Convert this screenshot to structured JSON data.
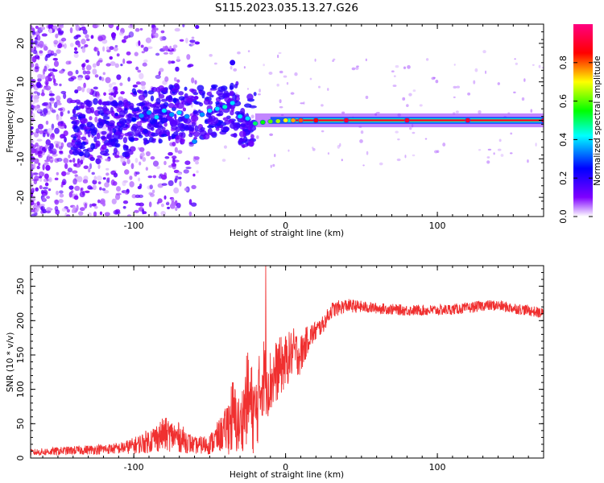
{
  "title": "S115.2023.035.13.27.G26",
  "chart_data": [
    {
      "type": "heatmap",
      "xlabel": "Height of straight line (km)",
      "ylabel": "Frequency (Hz)",
      "xlim": [
        -168,
        170
      ],
      "ylim": [
        -25,
        25
      ],
      "x_ticks": [
        -100,
        0,
        100
      ],
      "x_tick_labels": [
        "-100",
        "0",
        "100"
      ],
      "y_ticks": [
        -20,
        -10,
        0,
        10,
        20
      ],
      "y_tick_labels": [
        "-20",
        "-10",
        "0",
        "10",
        "20"
      ],
      "grid": false,
      "colorbar": {
        "label": "Normalized spectral amplitude",
        "range": [
          0,
          1
        ],
        "ticks": [
          0,
          0.2,
          0.4,
          0.6,
          0.8
        ],
        "tick_labels": [
          "0.0",
          "0.2",
          "0.4",
          "0.6",
          "0.8"
        ],
        "colormap": "rainbow",
        "colors": [
          "#ffffff",
          "#7f00ff",
          "#0000ff",
          "#00ffff",
          "#00ff00",
          "#ffff00",
          "#ff0000",
          "#ff0080"
        ]
      },
      "ridge": [
        {
          "x": -100,
          "y": 0.2,
          "v": 0.25
        },
        {
          "x": -95,
          "y": 1.2,
          "v": 0.35
        },
        {
          "x": -90,
          "y": 2.0,
          "v": 0.35
        },
        {
          "x": -85,
          "y": 0.8,
          "v": 0.4
        },
        {
          "x": -80,
          "y": 2.5,
          "v": 0.4
        },
        {
          "x": -75,
          "y": 1.5,
          "v": 0.35
        },
        {
          "x": -70,
          "y": 2.0,
          "v": 0.4
        },
        {
          "x": -65,
          "y": 1.0,
          "v": 0.35
        },
        {
          "x": -60,
          "y": -5.5,
          "v": 0.35
        },
        {
          "x": -55,
          "y": 1.5,
          "v": 0.35
        },
        {
          "x": -50,
          "y": 2.5,
          "v": 0.4
        },
        {
          "x": -45,
          "y": 3.0,
          "v": 0.4
        },
        {
          "x": -40,
          "y": 3.5,
          "v": 0.45
        },
        {
          "x": -35,
          "y": 4.5,
          "v": 0.4
        },
        {
          "x": -30,
          "y": 1.0,
          "v": 0.4
        },
        {
          "x": -25,
          "y": 0.5,
          "v": 0.4
        },
        {
          "x": -20,
          "y": -0.8,
          "v": 0.5
        },
        {
          "x": -15,
          "y": -0.5,
          "v": 0.55
        },
        {
          "x": -10,
          "y": -0.3,
          "v": 0.6
        },
        {
          "x": -5,
          "y": -0.2,
          "v": 0.65
        },
        {
          "x": 0,
          "y": 0.0,
          "v": 0.7
        },
        {
          "x": 5,
          "y": 0.0,
          "v": 0.75
        },
        {
          "x": 10,
          "y": 0.0,
          "v": 0.8
        },
        {
          "x": 20,
          "y": 0.0,
          "v": 0.85
        },
        {
          "x": 40,
          "y": 0.0,
          "v": 0.9
        },
        {
          "x": 80,
          "y": 0.0,
          "v": 0.9
        },
        {
          "x": 120,
          "y": 0.0,
          "v": 0.9
        },
        {
          "x": 170,
          "y": 0.0,
          "v": 0.9
        }
      ]
    },
    {
      "type": "line",
      "xlabel": "Height of straight line (km)",
      "ylabel": "SNR (10 * v/v)",
      "xlim": [
        -168,
        170
      ],
      "ylim": [
        0,
        280
      ],
      "x_ticks": [
        -100,
        0,
        100
      ],
      "x_tick_labels": [
        "-100",
        "0",
        "100"
      ],
      "y_ticks": [
        0,
        50,
        100,
        150,
        200,
        250
      ],
      "y_tick_labels": [
        "0",
        "50",
        "100",
        "150",
        "200",
        "250"
      ],
      "grid": false,
      "series_color": "#f03030",
      "envelope": {
        "x": [
          -168,
          -150,
          -130,
          -110,
          -100,
          -90,
          -80,
          -70,
          -60,
          -50,
          -40,
          -35,
          -30,
          -25,
          -20,
          -15,
          -10,
          -5,
          0,
          5,
          10,
          15,
          20,
          25,
          30,
          40,
          60,
          80,
          100,
          120,
          130,
          140,
          150,
          160,
          170
        ],
        "mean": [
          8,
          10,
          12,
          14,
          18,
          25,
          35,
          30,
          18,
          20,
          40,
          60,
          45,
          90,
          60,
          120,
          110,
          130,
          140,
          155,
          150,
          175,
          185,
          195,
          215,
          222,
          218,
          215,
          215,
          218,
          222,
          222,
          218,
          215,
          210
        ],
        "amplitude": [
          5,
          6,
          7,
          8,
          12,
          18,
          25,
          22,
          12,
          15,
          30,
          60,
          40,
          70,
          60,
          60,
          50,
          45,
          40,
          35,
          30,
          20,
          15,
          12,
          12,
          10,
          8,
          8,
          8,
          8,
          8,
          8,
          8,
          8,
          8
        ]
      },
      "peak": {
        "x": -13,
        "y": 280
      }
    }
  ]
}
